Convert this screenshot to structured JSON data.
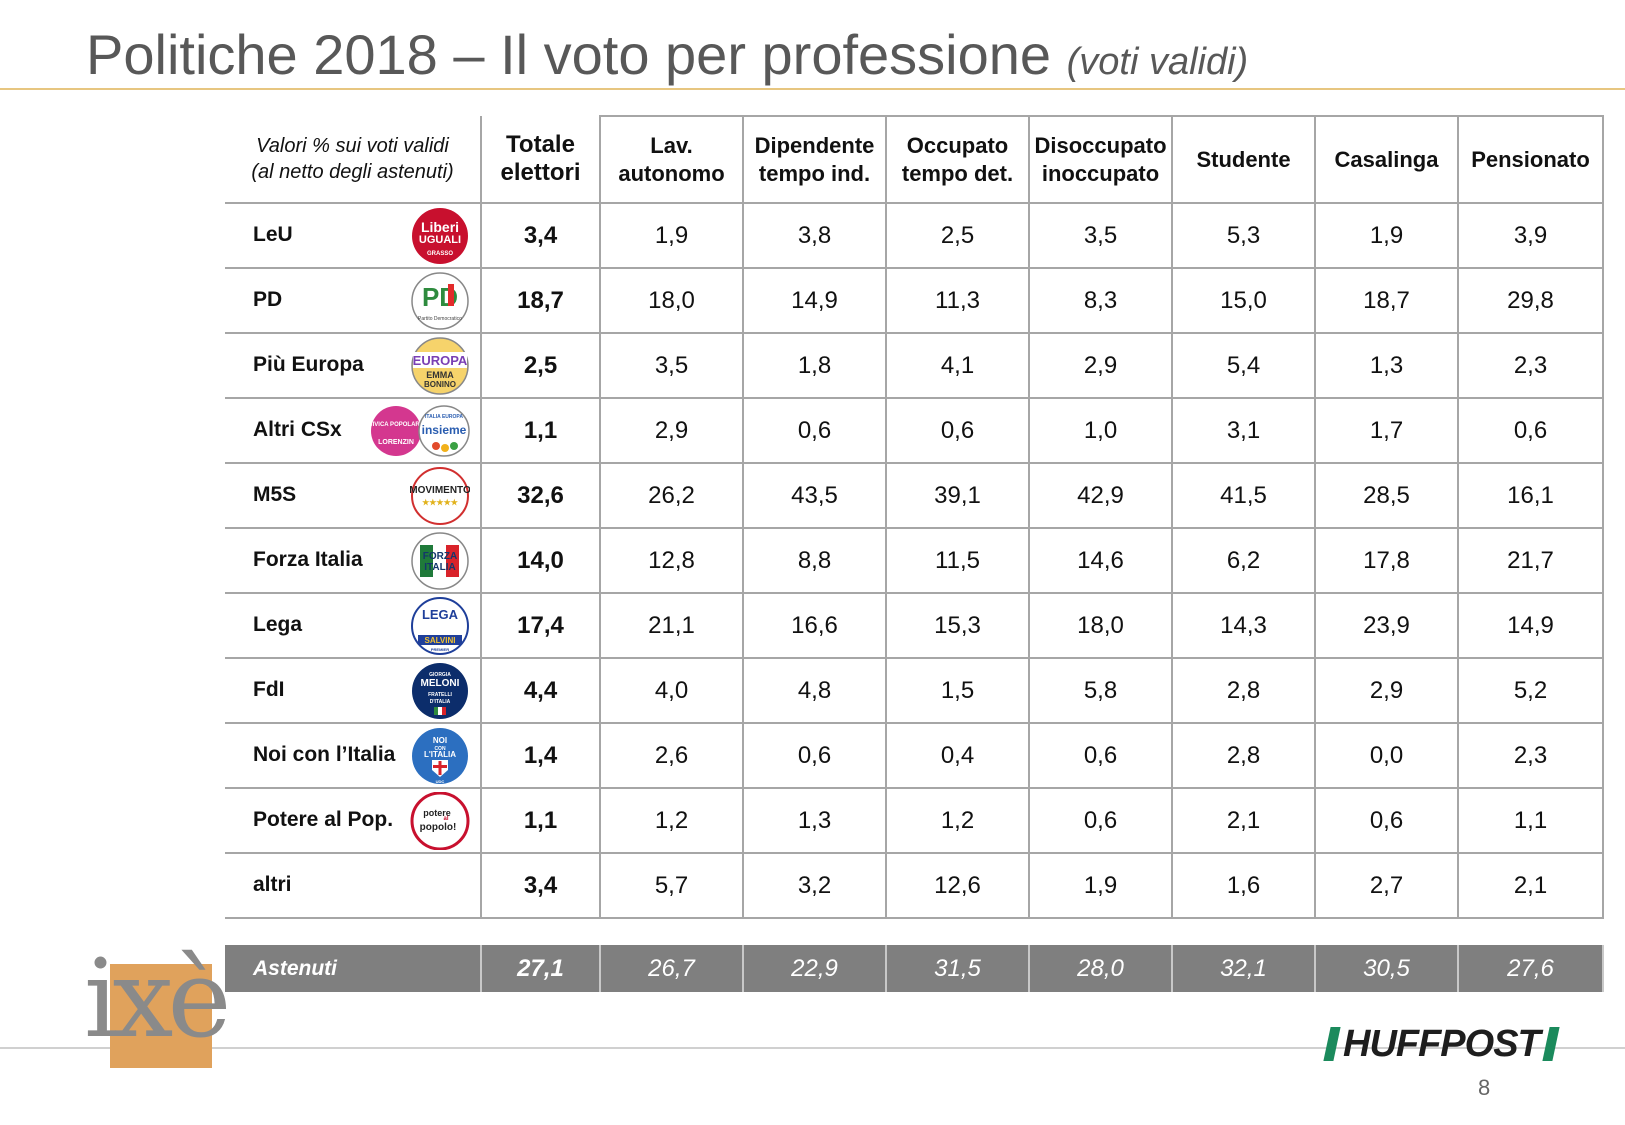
{
  "title": {
    "main": "Politiche 2018 – Il voto per professione",
    "sub": "(voti validi)"
  },
  "table": {
    "corner_line1": "Valori % sui voti validi",
    "corner_line2": "(al netto degli astenuti)",
    "total_line1": "Totale",
    "total_line2": "elettori",
    "columns": [
      {
        "line1": "Lav.",
        "line2": "autonomo"
      },
      {
        "line1": "Dipendente",
        "line2": "tempo ind."
      },
      {
        "line1": "Occupato",
        "line2": "tempo det."
      },
      {
        "line1": "Disoccupato",
        "line2": "inoccupato"
      },
      {
        "line1": "Studente",
        "line2": ""
      },
      {
        "line1": "Casalinga",
        "line2": ""
      },
      {
        "line1": "Pensionato",
        "line2": ""
      }
    ],
    "rows": [
      {
        "party": "LeU",
        "logo": "liberi-uguali-logo",
        "logo_color": "#c8102e",
        "total": "3,4",
        "values": [
          "1,9",
          "3,8",
          "2,5",
          "3,5",
          "5,3",
          "1,9",
          "3,9"
        ]
      },
      {
        "party": "PD",
        "logo": "pd-logo",
        "logo_color": "#2e8b3e",
        "total": "18,7",
        "values": [
          "18,0",
          "14,9",
          "11,3",
          "8,3",
          "15,0",
          "18,7",
          "29,8"
        ]
      },
      {
        "party": "Più Europa",
        "logo": "piu-europa-logo",
        "logo_color": "#f2c230",
        "total": "2,5",
        "values": [
          "3,5",
          "1,8",
          "4,1",
          "2,9",
          "5,4",
          "1,3",
          "2,3"
        ]
      },
      {
        "party": "Altri CSx",
        "logo": "civica-insieme-logos",
        "logo_color": "#d4378f",
        "total": "1,1",
        "values": [
          "2,9",
          "0,6",
          "0,6",
          "1,0",
          "3,1",
          "1,7",
          "0,6"
        ]
      },
      {
        "party": "M5S",
        "logo": "movimento-5-stelle-logo",
        "logo_color": "#d12f2f",
        "total": "32,6",
        "values": [
          "26,2",
          "43,5",
          "39,1",
          "42,9",
          "41,5",
          "28,5",
          "16,1"
        ]
      },
      {
        "party": "Forza Italia",
        "logo": "forza-italia-logo",
        "logo_color": "#1f7a3a",
        "total": "14,0",
        "values": [
          "12,8",
          "8,8",
          "11,5",
          "14,6",
          "6,2",
          "17,8",
          "21,7"
        ]
      },
      {
        "party": "Lega",
        "logo": "lega-logo",
        "logo_color": "#1f3f9a",
        "total": "17,4",
        "values": [
          "21,1",
          "16,6",
          "15,3",
          "18,0",
          "14,3",
          "23,9",
          "14,9"
        ]
      },
      {
        "party": "FdI",
        "logo": "fratelli-italia-logo",
        "logo_color": "#0c2d6b",
        "total": "4,4",
        "values": [
          "4,0",
          "4,8",
          "1,5",
          "5,8",
          "2,8",
          "2,9",
          "5,2"
        ]
      },
      {
        "party": "Noi con l’Italia",
        "logo": "noi-con-italia-logo",
        "logo_color": "#2c6fc0",
        "total": "1,4",
        "values": [
          "2,6",
          "0,6",
          "0,4",
          "0,6",
          "2,8",
          "0,0",
          "2,3"
        ]
      },
      {
        "party": "Potere al Pop.",
        "logo": "potere-al-popolo-logo",
        "logo_color": "#c8102e",
        "total": "1,1",
        "values": [
          "1,2",
          "1,3",
          "1,2",
          "0,6",
          "2,1",
          "0,6",
          "1,1"
        ]
      },
      {
        "party": "altri",
        "logo": "",
        "logo_color": "",
        "total": "3,4",
        "values": [
          "5,7",
          "3,2",
          "12,6",
          "1,9",
          "1,6",
          "2,7",
          "2,1"
        ]
      }
    ],
    "abstain": {
      "label": "Astenuti",
      "total": "27,1",
      "values": [
        "26,7",
        "22,9",
        "31,5",
        "28,0",
        "32,1",
        "30,5",
        "27,6"
      ]
    }
  },
  "logos": {
    "liberi_uguali": [
      "Liberi",
      "UGUALI",
      "GRASSO"
    ],
    "pd": [
      "PD",
      "Partito Democratico"
    ],
    "piu_europa": [
      "EUROPA",
      "EMMA",
      "BONINO"
    ],
    "altri_csx": [
      "CIVICA POPOLARE",
      "LORENZIN",
      "ITALIA EUROPA",
      "insieme"
    ],
    "m5s": [
      "MOVIMENTO",
      "★★★★★"
    ],
    "forza_italia": [
      "FORZA",
      "ITALIA"
    ],
    "lega": [
      "LEGA",
      "SALVINI",
      "PREMIER"
    ],
    "fdi": [
      "GIORGIA",
      "MELONI",
      "FRATELLI",
      "D'ITALIA"
    ],
    "noi_con_italia": [
      "NOI",
      "CON",
      "L'ITALIA",
      "UDC"
    ],
    "potere_al_popolo": [
      "potere",
      "al",
      "popolo!"
    ]
  },
  "footer": {
    "ixe_logo": "ixè",
    "huffpost_logo": "HUFFPOST",
    "page_number": "8"
  },
  "colors": {
    "title": "#585858",
    "title_rule": "#e7c680",
    "grid": "#a6a6a6",
    "abstain_bg": "#7f7f7f",
    "ixe_gold": "#e0a25c",
    "huff_green": "#1b8a5c"
  }
}
